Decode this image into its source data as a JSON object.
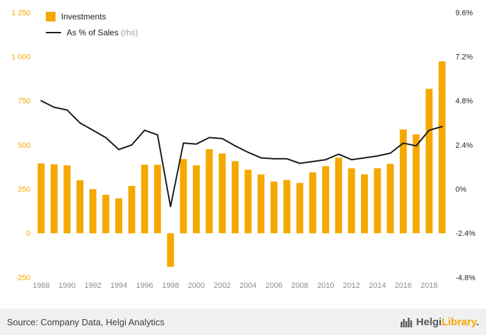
{
  "legend": {
    "investments_label": "Investments",
    "pct_label": "As % of Sales",
    "pct_suffix": "(rhs)"
  },
  "chart_data": {
    "type": "bar",
    "title": "",
    "x": [
      1988,
      1989,
      1990,
      1991,
      1992,
      1993,
      1994,
      1995,
      1996,
      1997,
      1998,
      1999,
      2000,
      2001,
      2002,
      2003,
      2004,
      2005,
      2006,
      2007,
      2008,
      2009,
      2010,
      2011,
      2012,
      2013,
      2014,
      2015,
      2016,
      2017,
      2018,
      2019
    ],
    "series": [
      {
        "name": "Investments",
        "type": "bar",
        "axis": "left",
        "color": "#F5A800",
        "values": [
          395,
          390,
          385,
          300,
          250,
          218,
          198,
          268,
          389,
          388,
          -190,
          420,
          385,
          476,
          452,
          408,
          360,
          333,
          293,
          301,
          285,
          345,
          380,
          428,
          368,
          333,
          368,
          393,
          588,
          560,
          818,
          973
        ]
      },
      {
        "name": "As % of Sales",
        "type": "line",
        "axis": "right",
        "color": "#1a1a1a",
        "values": [
          4.8,
          4.45,
          4.3,
          3.6,
          3.2,
          2.8,
          2.15,
          2.4,
          3.2,
          2.95,
          -0.95,
          2.5,
          2.45,
          2.8,
          2.75,
          2.35,
          2.0,
          1.7,
          1.65,
          1.65,
          1.4,
          1.5,
          1.6,
          1.9,
          1.6,
          1.7,
          1.8,
          1.95,
          2.5,
          2.35,
          3.2,
          3.4
        ]
      }
    ],
    "left_axis": {
      "ticks": [
        "1 250",
        "1 000",
        "750",
        "500",
        "250",
        "0",
        "-250"
      ],
      "values": [
        1250,
        1000,
        750,
        500,
        250,
        0,
        -250
      ],
      "range": [
        -250,
        1250
      ],
      "color": "#F5A800"
    },
    "right_axis": {
      "ticks": [
        "9.6%",
        "7.2%",
        "4.8%",
        "2.4%",
        "0%",
        "-2.4%",
        "-4.8%"
      ],
      "values": [
        9.6,
        7.2,
        4.8,
        2.4,
        0,
        -2.4,
        -4.8
      ],
      "range": [
        -4.8,
        9.6
      ],
      "color": "#262626"
    },
    "x_tick_years": [
      1988,
      1990,
      1992,
      1994,
      1996,
      1998,
      2000,
      2002,
      2004,
      2006,
      2008,
      2010,
      2012,
      2014,
      2016,
      2018
    ],
    "x_tick_color": "#8c8c8c",
    "legend_position": "top-left",
    "grid": false
  },
  "footer": {
    "source": "Source: Company Data, Helgi Analytics",
    "brand_primary": "Helgi",
    "brand_secondary": "Library",
    "brand_suffix": "."
  }
}
